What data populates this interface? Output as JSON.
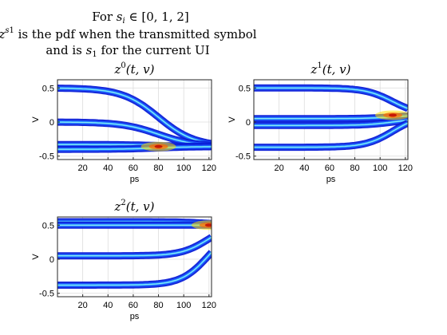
{
  "figure_title_lines": [
    "For s_i ∈ [0, 1, 2]",
    "z^{s_1} is the pdf when the transmitted symbol",
    "and is s_1 for the current UI"
  ],
  "chart_data": [
    {
      "type": "heatmap",
      "title": "z^0(t, v)",
      "xlabel": "ps",
      "ylabel": "V",
      "xlim": [
        0,
        122
      ],
      "ylim": [
        -0.55,
        0.62
      ],
      "xticks": [
        20,
        40,
        60,
        80,
        100,
        120
      ],
      "yticks": [
        -0.5,
        0,
        0.5
      ],
      "ytick_labels": [
        "-0.5",
        "0",
        "0.5"
      ],
      "grid": true,
      "colormap": "jet",
      "traces": [
        {
          "from": 0.5,
          "to": -0.36,
          "t0": 40,
          "tau": 24
        },
        {
          "from": 0.0,
          "to": -0.36,
          "t0": 40,
          "tau": 24
        },
        {
          "from": -0.33,
          "to": -0.36,
          "t0": 40,
          "tau": 24
        },
        {
          "from": -0.4,
          "to": -0.36,
          "t0": 40,
          "tau": 24
        }
      ]
    },
    {
      "type": "heatmap",
      "title": "z^1(t, v)",
      "xlabel": "ps",
      "ylabel": "V",
      "xlim": [
        0,
        122
      ],
      "ylim": [
        -0.55,
        0.62
      ],
      "xticks": [
        20,
        40,
        60,
        80,
        100,
        120
      ],
      "yticks": [
        -0.5,
        0,
        0.5
      ],
      "ytick_labels": [
        "-0.5",
        "0",
        "0.5"
      ],
      "grid": true,
      "colormap": "jet",
      "traces": [
        {
          "from": 0.5,
          "to": 0.1,
          "t0": 55,
          "tau": 18
        },
        {
          "from": 0.05,
          "to": 0.1,
          "t0": 55,
          "tau": 18
        },
        {
          "from": -0.05,
          "to": 0.05,
          "t0": 55,
          "tau": 18
        },
        {
          "from": -0.37,
          "to": 0.1,
          "t0": 55,
          "tau": 18
        }
      ]
    },
    {
      "type": "heatmap",
      "title": "z^2(t, v)",
      "xlabel": "ps",
      "ylabel": "V",
      "xlim": [
        0,
        122
      ],
      "ylim": [
        -0.55,
        0.62
      ],
      "xticks": [
        20,
        40,
        60,
        80,
        100,
        120
      ],
      "yticks": [
        -0.5,
        0,
        0.5
      ],
      "ytick_labels": [
        "-0.5",
        "0",
        "0.5"
      ],
      "grid": true,
      "colormap": "jet",
      "traces": [
        {
          "from": 0.55,
          "to": 0.5,
          "t0": 60,
          "tau": 18
        },
        {
          "from": 0.5,
          "to": 0.5,
          "t0": 60,
          "tau": 18
        },
        {
          "from": 0.05,
          "to": 0.55,
          "t0": 60,
          "tau": 18
        },
        {
          "from": -0.38,
          "to": 0.5,
          "t0": 60,
          "tau": 18
        }
      ]
    }
  ]
}
